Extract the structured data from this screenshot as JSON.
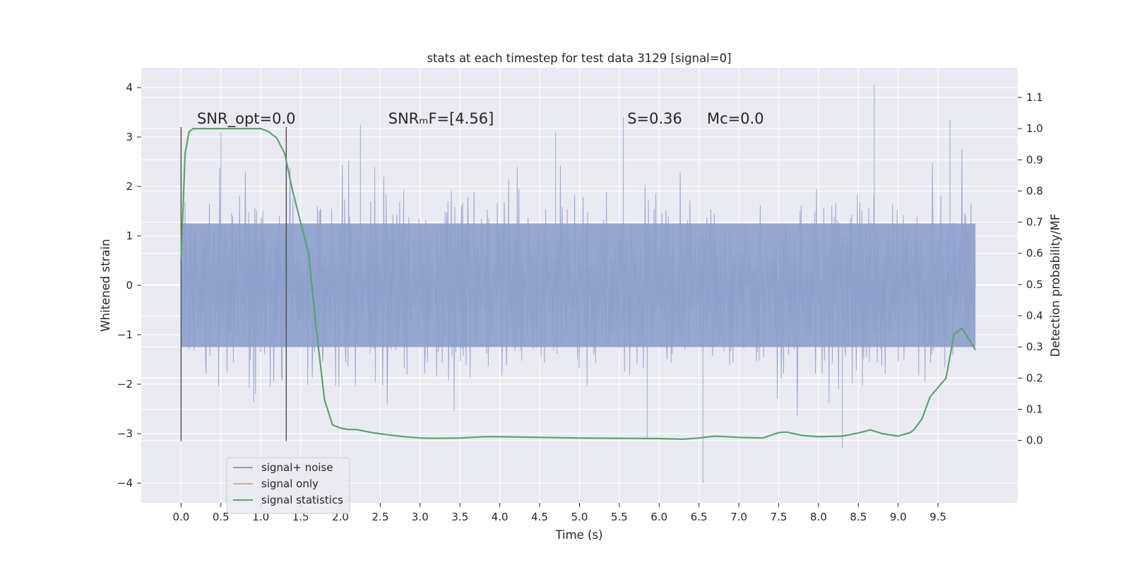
{
  "chart_data": {
    "type": "line",
    "title": "stats at each timestep for test data 3129 [signal=0]",
    "xlabel": "Time (s)",
    "ylabel": "Whitened strain",
    "y2label": "Detection probability/MF",
    "xlim": [
      -0.5,
      10.5
    ],
    "ylim": [
      -4.4,
      4.4
    ],
    "y2lim": [
      -0.2,
      1.195
    ],
    "x_ticks": [
      0.0,
      0.5,
      1.0,
      1.5,
      2.0,
      2.5,
      3.0,
      3.5,
      4.0,
      4.5,
      5.0,
      5.5,
      6.0,
      6.5,
      7.0,
      7.5,
      8.0,
      8.5,
      9.0,
      9.5
    ],
    "x_tick_labels": [
      "0.0",
      "0.5",
      "1.0",
      "1.5",
      "2.0",
      "2.5",
      "3.0",
      "3.5",
      "4.0",
      "4.5",
      "5.0",
      "5.5",
      "6.0",
      "6.5",
      "7.0",
      "7.5",
      "8.0",
      "8.5",
      "9.0",
      "9.5"
    ],
    "y_ticks": [
      4,
      3,
      2,
      1,
      0,
      -1,
      -2,
      -3,
      -4
    ],
    "y_tick_labels": [
      "4",
      "3",
      "2",
      "1",
      "0",
      "−1",
      "−2",
      "−3",
      "−4"
    ],
    "y2_ticks": [
      1.1,
      1.0,
      0.9,
      0.8,
      0.7,
      0.6,
      0.5,
      0.4,
      0.3,
      0.2,
      0.1,
      0.0
    ],
    "y2_tick_labels": [
      "1.1",
      "1.0",
      "0.9",
      "0.8",
      "0.7",
      "0.6",
      "0.5",
      "0.4",
      "0.3",
      "0.2",
      "0.1",
      "0.0"
    ],
    "grid": true,
    "legend_placement": "lower-left",
    "series": [
      {
        "name": "signal+ noise",
        "color": "#8c9fcb",
        "axis": "left",
        "kind": "noise",
        "x_range": [
          0.0,
          9.97
        ],
        "approx_abs_max": 4.05,
        "spikes": [
          {
            "x": 0.5,
            "y": 3.1
          },
          {
            "x": 2.25,
            "y": 3.25
          },
          {
            "x": 4.7,
            "y": 3.1
          },
          {
            "x": 5.55,
            "y": 3.4
          },
          {
            "x": 8.7,
            "y": 4.05
          },
          {
            "x": 9.65,
            "y": 3.35
          },
          {
            "x": 5.85,
            "y": -3.1
          },
          {
            "x": 6.55,
            "y": -4.0
          },
          {
            "x": 8.3,
            "y": -3.3
          }
        ]
      },
      {
        "name": "signal only",
        "color": "#dd8452",
        "axis": "left",
        "kind": "line",
        "x": [],
        "y": []
      },
      {
        "name": "signal statistics",
        "color": "#55a868",
        "axis": "right",
        "kind": "line",
        "x": [
          0.0,
          0.05,
          0.1,
          0.15,
          0.25,
          0.5,
          0.8,
          1.0,
          1.1,
          1.2,
          1.3,
          1.4,
          1.5,
          1.6,
          1.7,
          1.8,
          1.9,
          2.0,
          2.1,
          2.2,
          2.4,
          2.6,
          2.8,
          3.0,
          3.2,
          3.5,
          3.8,
          4.0,
          4.5,
          5.0,
          5.5,
          6.0,
          6.3,
          6.5,
          6.7,
          7.0,
          7.3,
          7.5,
          7.6,
          7.8,
          8.0,
          8.3,
          8.5,
          8.65,
          8.8,
          9.0,
          9.15,
          9.2,
          9.3,
          9.4,
          9.5,
          9.6,
          9.7,
          9.8,
          9.9,
          9.97
        ],
        "y": [
          0.58,
          0.92,
          0.99,
          1.0,
          1.0,
          1.0,
          1.0,
          1.0,
          0.99,
          0.97,
          0.92,
          0.8,
          0.7,
          0.6,
          0.35,
          0.13,
          0.05,
          0.04,
          0.035,
          0.035,
          0.025,
          0.018,
          0.012,
          0.008,
          0.007,
          0.008,
          0.012,
          0.012,
          0.01,
          0.008,
          0.007,
          0.006,
          0.004,
          0.008,
          0.014,
          0.01,
          0.008,
          0.025,
          0.027,
          0.016,
          0.012,
          0.014,
          0.024,
          0.034,
          0.022,
          0.014,
          0.025,
          0.035,
          0.07,
          0.14,
          0.17,
          0.2,
          0.34,
          0.36,
          0.32,
          0.29
        ]
      }
    ],
    "vlines": [
      0.0,
      1.32
    ],
    "annotations": [
      {
        "x": 0.2,
        "y": 3.2,
        "text": "SNR_opt=0.0"
      },
      {
        "x": 2.6,
        "y": 3.2,
        "text": "SNRₘF=[4.56]"
      },
      {
        "x": 5.6,
        "y": 3.2,
        "text": "S=0.36"
      },
      {
        "x": 6.6,
        "y": 3.2,
        "text": "Mᴄ=0.0"
      }
    ]
  }
}
